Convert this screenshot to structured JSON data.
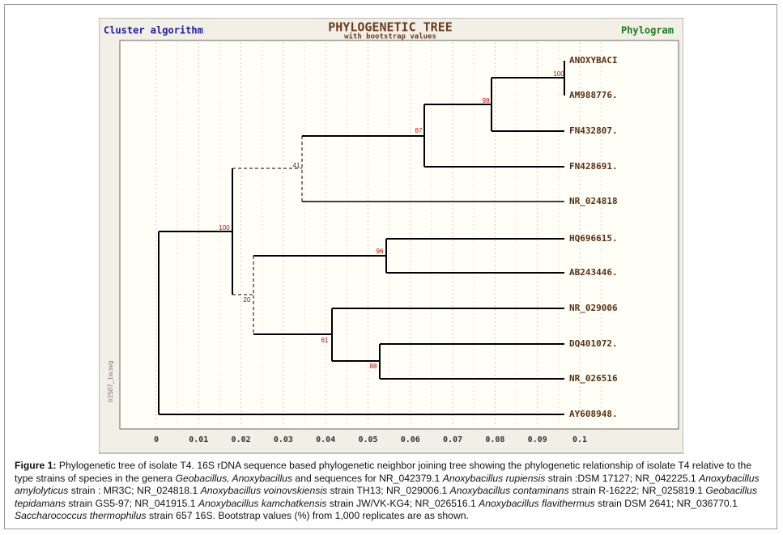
{
  "header": {
    "left": "Cluster algorithm",
    "title": "PHYLOGENETIC TREE",
    "subtitle": "with bootstrap values",
    "right": "Phylogram"
  },
  "side_label": "tr2507_1w.svg",
  "leaves": [
    "ANOXYBACI",
    "AM988776.",
    "FN432807.",
    "FN428691.",
    "NR_024818",
    "HQ696615.",
    "AB243446.",
    "NR_029006",
    "DQ401072.",
    "NR_026516",
    "AY608948."
  ],
  "bootstrap": [
    "100",
    "98",
    "87",
    "41",
    "100",
    "96",
    "20",
    "61",
    "88"
  ],
  "axis_labels": [
    "0",
    "0.01",
    "0.02",
    "0.03",
    "0.04",
    "0.05",
    "0.06",
    "0.07",
    "0.08",
    "0.09",
    "0.1"
  ],
  "caption": {
    "label": "Figure 1:",
    "segments": [
      {
        "text": " Phylogenetic tree of isolate T4. 16S rDNA sequence based phylogenetic neighbor joining tree showing the phylogenetic relationship of isolate T4 relative to the type strains of species in the genera ",
        "italic": false
      },
      {
        "text": "Geobacillus, Anoxybacillus",
        "italic": true
      },
      {
        "text": " and sequences for NR_042379.1 ",
        "italic": false
      },
      {
        "text": "Anoxybacillus rupiensis",
        "italic": true
      },
      {
        "text": " strain :DSM 17127; NR_042225.1 ",
        "italic": false
      },
      {
        "text": "Anoxybacillus amylolyticus",
        "italic": true
      },
      {
        "text": " strain : MR3C; NR_024818.1 ",
        "italic": false
      },
      {
        "text": "Anoxybacillus voinovskiensis",
        "italic": true
      },
      {
        "text": " strain TH13; NR_029006.1 ",
        "italic": false
      },
      {
        "text": "Anoxybacillus contaminans",
        "italic": true
      },
      {
        "text": " strain R-16222; NR_025819.1 ",
        "italic": false
      },
      {
        "text": "Geobacillus tepidamans",
        "italic": true
      },
      {
        "text": " strain GS5-97; NR_041915.1 ",
        "italic": false
      },
      {
        "text": "Anoxybacillus kamchatkensis",
        "italic": true
      },
      {
        "text": " strain JW/VK-KG4; NR_026516.1 ",
        "italic": false
      },
      {
        "text": "Anoxybacillus flavithermus",
        "italic": true
      },
      {
        "text": " strain DSM 2641; NR_036770.1 ",
        "italic": false
      },
      {
        "text": "Saccharococcus thermophilus",
        "italic": true
      },
      {
        "text": " strain 657 16S. Bootstrap values (%) from 1,000 replicates are as shown.",
        "italic": false
      }
    ]
  }
}
